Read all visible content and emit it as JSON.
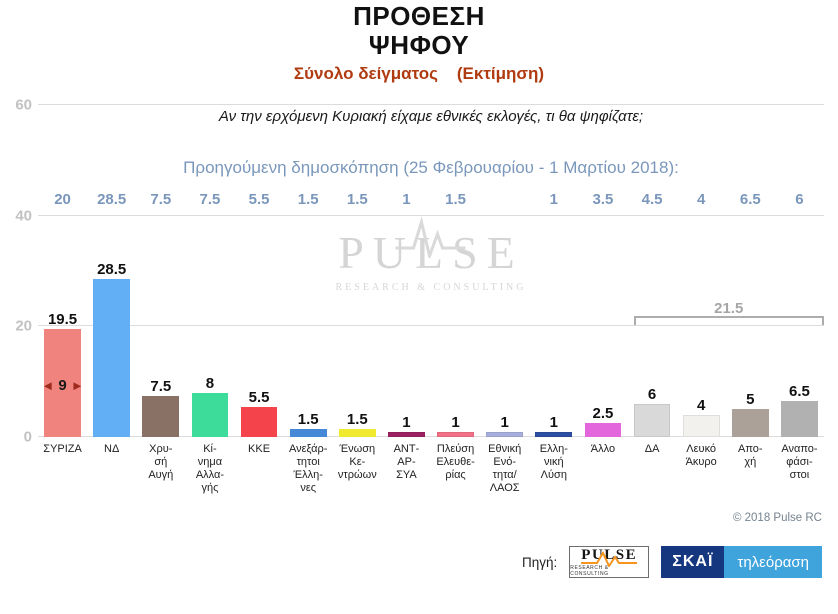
{
  "header": {
    "title": "ΠΡΟΘΕΣΗ\nΨΗΦΟΥ",
    "subtitle": "Σύνολο δείγματος    (Εκτίμηση)"
  },
  "chart_data": {
    "type": "bar",
    "title": "ΠΡΟΘΕΣΗ ΨΗΦΟΥ",
    "subtitle": "Σύνολο δείγματος (Εκτίμηση)",
    "question": "Αν την ερχόμενη Κυριακή είχαμε εθνικές εκλογές, τι θα ψηφίζατε;",
    "previous_poll_label": "Προηγούμενη δημοσκόπηση (25 Φεβρουαρίου - 1 Μαρτίου 2018):",
    "ylim": [
      0,
      60
    ],
    "yticks": [
      0,
      20,
      40,
      60
    ],
    "grid": true,
    "series": [
      {
        "name": "ΣΥΡΙΖΑ",
        "label": "ΣΥΡΙΖΑ",
        "value": 19.5,
        "previous": 20,
        "color": "#F0837E"
      },
      {
        "name": "ΝΔ",
        "label": "ΝΔ",
        "value": 28.5,
        "previous": 28.5,
        "color": "#63AFF5"
      },
      {
        "name": "Χρυσή Αυγή",
        "label": "Χρυ-\nσή\nΑυγή",
        "value": 7.5,
        "previous": 7.5,
        "color": "#8A7165"
      },
      {
        "name": "Κίνημα Αλλαγής",
        "label": "Κί-\nνημα\nΑλλα-\nγής",
        "value": 8,
        "previous": 7.5,
        "color": "#3EDC9B"
      },
      {
        "name": "ΚΚΕ",
        "label": "ΚΚΕ",
        "value": 5.5,
        "previous": 5.5,
        "color": "#F4434A"
      },
      {
        "name": "Ανεξάρτητοι Έλληνες",
        "label": "Ανεξάρ-\nτητοι\nΈλλη-\nνες",
        "value": 1.5,
        "previous": 1.5,
        "color": "#4688D8"
      },
      {
        "name": "Ένωση Κεντρώων",
        "label": "Ένωση\nΚε-\nντρώων",
        "value": 1.5,
        "previous": 1.5,
        "color": "#EFEA2F"
      },
      {
        "name": "ΑΝΤΑΡΣΥΑ",
        "label": "ΑΝΤ-\nΑΡ-\nΣΥΑ",
        "value": 1,
        "previous": 1,
        "color": "#9C2162"
      },
      {
        "name": "Πλεύση Ελευθερίας",
        "label": "Πλεύση\nΕλευθε-\nρίας",
        "value": 1,
        "previous": 1.5,
        "color": "#F27187"
      },
      {
        "name": "Εθνική Ενότητα/ΛΑΟΣ",
        "label": "Εθνική\nΕνό-\nτητα/\nΛΑΟΣ",
        "value": 1,
        "previous": null,
        "color": "#A6AEDB"
      },
      {
        "name": "Ελληνική Λύση",
        "label": "Ελλη-\nνική\nΛύση",
        "value": 1,
        "previous": 1,
        "color": "#2C4FA3"
      },
      {
        "name": "Άλλο",
        "label": "Άλλο",
        "value": 2.5,
        "previous": 3.5,
        "color": "#E366DC"
      },
      {
        "name": "ΔΑ",
        "label": "ΔΑ",
        "value": 6,
        "previous": 4.5,
        "color": "#D9D9D9"
      },
      {
        "name": "Λευκό Άκυρο",
        "label": "Λευκό\nΆκυρο",
        "value": 4,
        "previous": 4,
        "color": "#F2F1ED"
      },
      {
        "name": "Αποχή",
        "label": "Απο-\nχή",
        "value": 5,
        "previous": 6.5,
        "color": "#ABA198"
      },
      {
        "name": "Αναποφάσιστοι",
        "label": "Αναπο-\nφάσι-\nστοι",
        "value": 6.5,
        "previous": 6,
        "color": "#B1B1B1"
      }
    ],
    "difference_marker": {
      "column_index": 0,
      "text": "9"
    },
    "bracket": {
      "label": "21.5",
      "value": 21.5,
      "from_index": 12,
      "to_index": 15
    },
    "watermark": {
      "name": "PULSE",
      "sub": "RESEARCH & CONSULTING"
    }
  },
  "footer": {
    "copyright": "© 2018 Pulse RC",
    "source_label": "Πηγή:",
    "pulse_logo": {
      "name": "PULSE",
      "sub": "RESEARCH & CONSULTING"
    },
    "skai_logo": {
      "name": "ΣΚΑΪ",
      "sub": "τηλεόραση"
    }
  }
}
